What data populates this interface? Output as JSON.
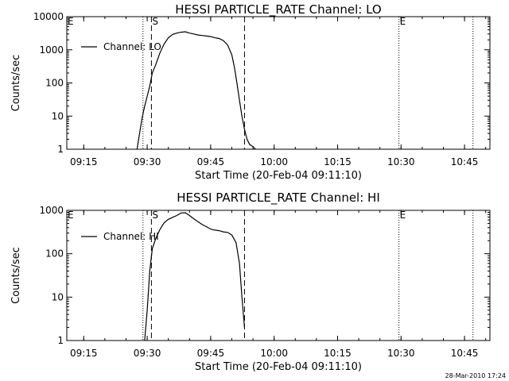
{
  "stamp": "28-Mar-2010 17:24",
  "chart_data": [
    {
      "type": "line",
      "title": "HESSI PARTICLE_RATE Channel: LO",
      "xlabel": "Start Time (20-Feb-04 09:11:10)",
      "ylabel": "Counts/sec",
      "yscale": "log",
      "ylim": [
        1,
        10000
      ],
      "xlim": [
        "09:11",
        "10:51"
      ],
      "x_ticks": [
        "09:15",
        "09:30",
        "09:45",
        "10:00",
        "10:15",
        "10:30",
        "10:45"
      ],
      "y_ticks": [
        "1",
        "10",
        "100",
        "1000",
        "10000"
      ],
      "grid": false,
      "legend": {
        "position": "top-left",
        "entries": [
          "Channel: LO"
        ]
      },
      "markers": [
        {
          "label": "E",
          "x": "09:11",
          "style": "none"
        },
        {
          "label": "",
          "x": "09:29",
          "style": "dotted"
        },
        {
          "label": "S",
          "x": "09:31",
          "style": "dashed"
        },
        {
          "label": "",
          "x": "09:53",
          "style": "dashed"
        },
        {
          "label": "E",
          "x": "10:29.5",
          "style": "dotted"
        },
        {
          "label": "",
          "x": "10:47",
          "style": "dotted"
        }
      ],
      "series": [
        {
          "x": [
            "09:27.6",
            "09:28.2",
            "09:28.8",
            "09:29.4",
            "09:30",
            "09:30.6",
            "09:31.2",
            "09:32",
            "09:33",
            "09:34",
            "09:35",
            "09:36",
            "09:37",
            "09:38",
            "09:39",
            "09:40",
            "09:41",
            "09:42",
            "09:43",
            "09:44",
            "09:45",
            "09:46",
            "09:47",
            "09:48",
            "09:49",
            "09:50",
            "09:50.6",
            "09:51.2",
            "09:51.8",
            "09:52.4",
            "09:53",
            "09:53.6",
            "09:54.2",
            "09:55",
            "09:55.6"
          ],
          "y": [
            1,
            3,
            9,
            20,
            40,
            80,
            200,
            350,
            800,
            1500,
            2300,
            2900,
            3200,
            3400,
            3500,
            3200,
            3000,
            2800,
            2700,
            2600,
            2500,
            2300,
            2200,
            1900,
            1400,
            700,
            300,
            100,
            30,
            10,
            4,
            2,
            1.4,
            1.2,
            1
          ]
        }
      ]
    },
    {
      "type": "line",
      "title": "HESSI PARTICLE_RATE Channel: HI",
      "xlabel": "Start Time (20-Feb-04 09:11:10)",
      "ylabel": "Counts/sec",
      "yscale": "log",
      "ylim": [
        1,
        1000
      ],
      "xlim": [
        "09:11",
        "10:51"
      ],
      "x_ticks": [
        "09:15",
        "09:30",
        "09:45",
        "10:00",
        "10:15",
        "10:30",
        "10:45"
      ],
      "y_ticks": [
        "1",
        "10",
        "100",
        "1000"
      ],
      "grid": false,
      "legend": {
        "position": "top-left",
        "entries": [
          "Channel: HI"
        ]
      },
      "markers": [
        {
          "label": "E",
          "x": "09:11",
          "style": "none"
        },
        {
          "label": "",
          "x": "09:29",
          "style": "dotted"
        },
        {
          "label": "S",
          "x": "09:31",
          "style": "dashed"
        },
        {
          "label": "",
          "x": "09:53",
          "style": "dashed"
        },
        {
          "label": "E",
          "x": "10:29.5",
          "style": "dotted"
        },
        {
          "label": "",
          "x": "10:47",
          "style": "dotted"
        }
      ],
      "series": [
        {
          "x": [
            "09:29.4",
            "09:30",
            "09:30.6",
            "09:31.2",
            "09:32",
            "09:33",
            "09:34",
            "09:35",
            "09:36",
            "09:37",
            "09:38",
            "09:39",
            "09:40",
            "09:41",
            "09:42",
            "09:43",
            "09:44",
            "09:45",
            "09:46",
            "09:47",
            "09:48",
            "09:49",
            "09:50",
            "09:51",
            "09:51.8",
            "09:52.4",
            "09:53"
          ],
          "y": [
            1,
            5,
            40,
            130,
            220,
            360,
            520,
            620,
            690,
            760,
            870,
            880,
            760,
            640,
            550,
            470,
            420,
            370,
            350,
            340,
            320,
            310,
            270,
            180,
            60,
            10,
            2
          ]
        }
      ]
    }
  ]
}
